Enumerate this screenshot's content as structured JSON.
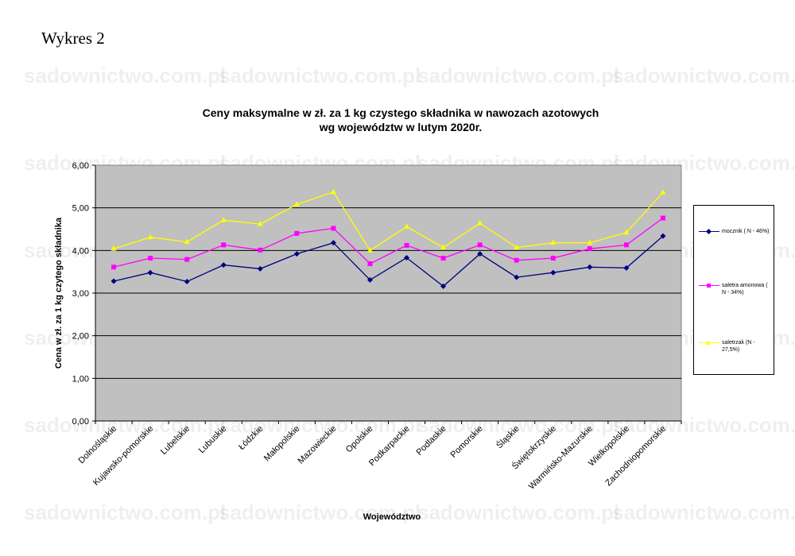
{
  "figure_label": "Wykres 2",
  "watermark_text": "sadownictwo.com.pl",
  "chart_data": {
    "type": "line",
    "title_line1": "Ceny maksymalne  w zł. za 1 kg czystego składnika w nawozach azotowych",
    "title_line2": "wg województw w lutym  2020r.",
    "xlabel": "Województwo",
    "ylabel": "Cena w zł. za 1 kg czytego składnika",
    "ylim": [
      0,
      6
    ],
    "yticks": [
      "0,00",
      "1,00",
      "2,00",
      "3,00",
      "4,00",
      "5,00",
      "6,00"
    ],
    "grid": true,
    "plot_background": "#c0c0c0",
    "legend_position": "right",
    "categories": [
      "Dolnośląskie",
      "Kujawsko-pomorskie",
      "Lubelskie",
      "Lubuskie",
      "Łódzkie",
      "Małopolskie",
      "Mazowieckie",
      "Opolskie",
      "Podkarpackie",
      "Podlaskie",
      "Pomorskie",
      "Śląskie",
      "Świętokrzyskie",
      "Warmińsko-Mazurskie",
      "Wielkopolskie",
      "Zachodniopomorskie"
    ],
    "series": [
      {
        "name": "mocznik ( N - 46%)",
        "color": "#000080",
        "marker": "diamond",
        "values": [
          3.28,
          3.48,
          3.27,
          3.66,
          3.57,
          3.92,
          4.18,
          3.31,
          3.83,
          3.16,
          3.92,
          3.37,
          3.48,
          3.61,
          3.59,
          4.34
        ]
      },
      {
        "name": "saletra amonowa ( N - 34%)",
        "color": "#ff00ff",
        "marker": "square",
        "values": [
          3.61,
          3.82,
          3.79,
          4.13,
          4.01,
          4.4,
          4.52,
          3.69,
          4.12,
          3.82,
          4.13,
          3.77,
          3.82,
          4.04,
          4.13,
          4.76
        ]
      },
      {
        "name": "saletrzak (N - 27,5%)",
        "color": "#ffff00",
        "marker": "triangle",
        "values": [
          4.04,
          4.31,
          4.2,
          4.71,
          4.62,
          5.08,
          5.37,
          4.0,
          4.56,
          4.07,
          4.64,
          4.07,
          4.18,
          4.18,
          4.42,
          5.36
        ]
      }
    ]
  }
}
